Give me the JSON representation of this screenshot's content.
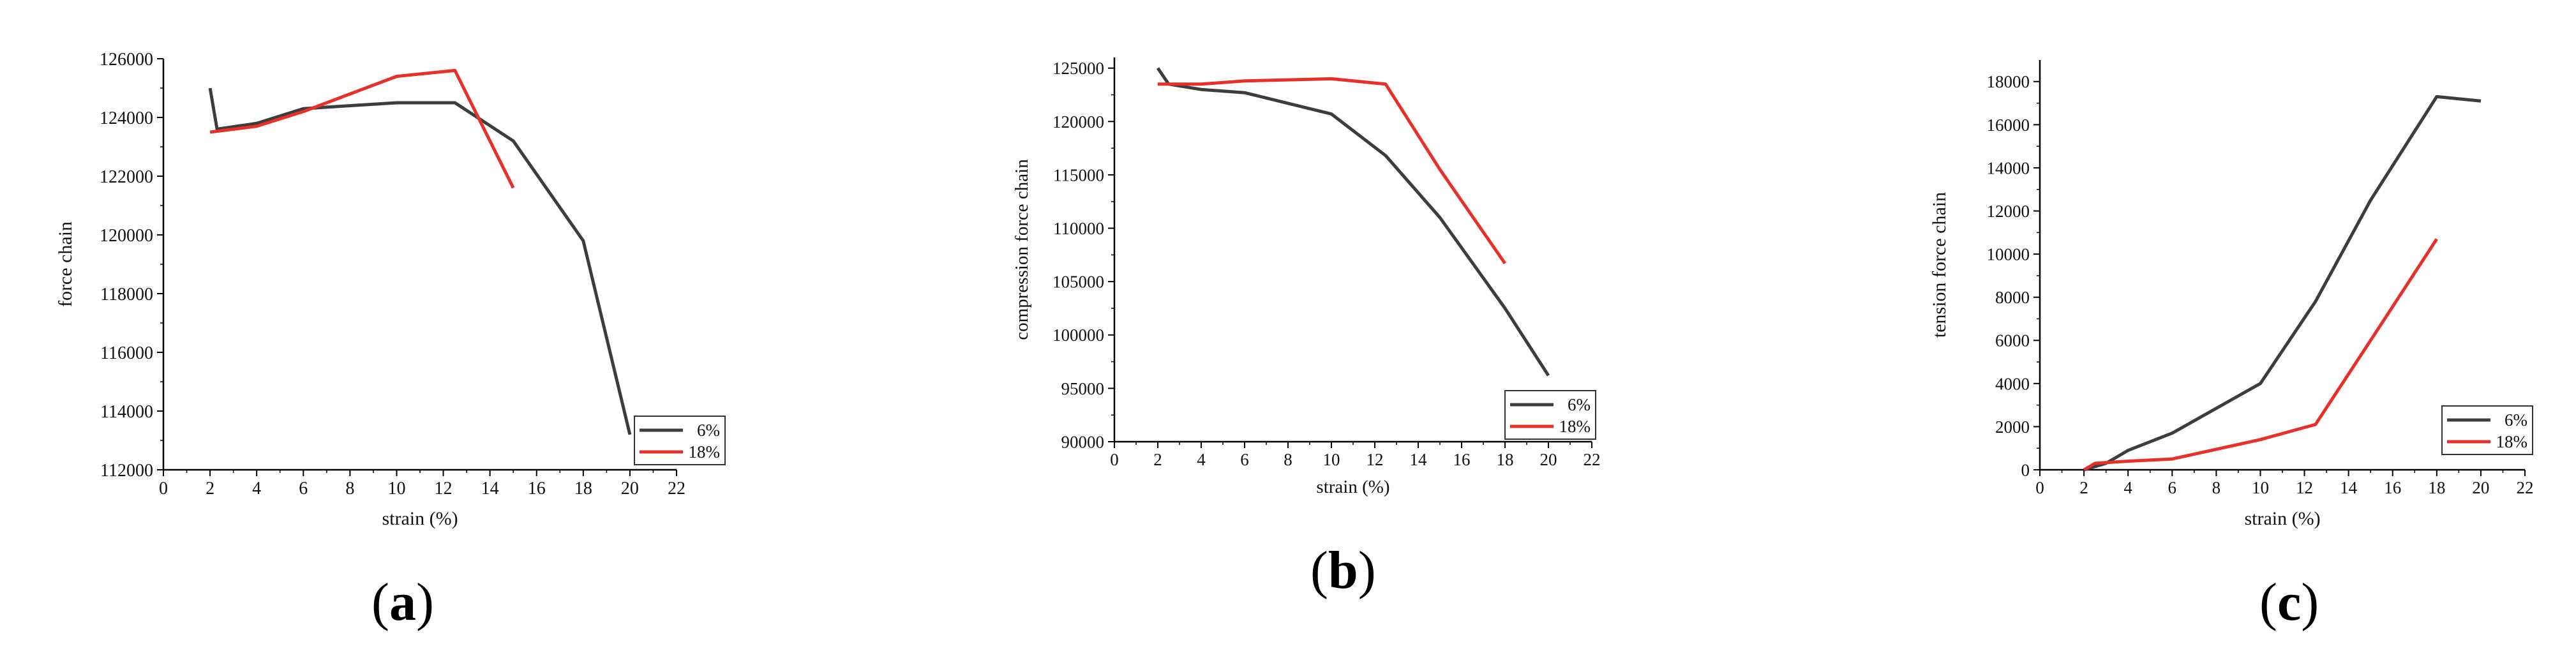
{
  "colors": {
    "series_6": "#3d3d3d",
    "series_18": "#e8302a",
    "axis": "#000000"
  },
  "panel_labels": [
    {
      "open": "(",
      "letter": "a",
      "close": ")"
    },
    {
      "open": "(",
      "letter": "b",
      "close": ")"
    },
    {
      "open": "(",
      "letter": "c",
      "close": ")"
    }
  ],
  "chart_data": [
    {
      "type": "line",
      "xlabel": "strain (%)",
      "ylabel": "force chain",
      "xlim": [
        0,
        22
      ],
      "ylim": [
        112000,
        126000
      ],
      "xticks": [
        0,
        2,
        4,
        6,
        8,
        10,
        12,
        14,
        16,
        18,
        20,
        22
      ],
      "yticks": [
        112000,
        114000,
        116000,
        118000,
        120000,
        122000,
        124000,
        126000
      ],
      "legend_position": "bottom-right",
      "series": [
        {
          "name": "6%",
          "color": "#3d3d3d",
          "x": [
            2,
            2.3,
            4,
            6,
            10,
            12.5,
            15,
            18,
            20
          ],
          "y": [
            125000,
            123600,
            123800,
            124300,
            124500,
            124500,
            123200,
            119800,
            113200
          ]
        },
        {
          "name": "18%",
          "color": "#e8302a",
          "x": [
            2,
            4,
            6,
            10,
            12.5,
            15
          ],
          "y": [
            123500,
            123700,
            124200,
            125400,
            125600,
            121600
          ]
        }
      ]
    },
    {
      "type": "line",
      "xlabel": "strain (%)",
      "ylabel": "compression force chain",
      "xlim": [
        0,
        22
      ],
      "ylim": [
        90000,
        126000
      ],
      "xticks": [
        0,
        2,
        4,
        6,
        8,
        10,
        12,
        14,
        16,
        18,
        20,
        22
      ],
      "yticks": [
        90000,
        95000,
        100000,
        105000,
        110000,
        115000,
        120000,
        125000
      ],
      "legend_position": "bottom-right",
      "series": [
        {
          "name": "6%",
          "color": "#3d3d3d",
          "x": [
            2,
            2.5,
            4,
            6,
            10,
            12.5,
            15,
            18,
            20
          ],
          "y": [
            125000,
            123500,
            123000,
            122700,
            120700,
            116800,
            111000,
            102500,
            96200
          ]
        },
        {
          "name": "18%",
          "color": "#e8302a",
          "x": [
            2,
            4,
            6,
            10,
            12.5,
            15,
            18
          ],
          "y": [
            123500,
            123500,
            123800,
            124000,
            123500,
            115500,
            106700
          ]
        }
      ]
    },
    {
      "type": "line",
      "xlabel": "strain (%)",
      "ylabel": "tension force chain",
      "xlim": [
        0,
        22
      ],
      "ylim": [
        0,
        19000
      ],
      "xticks": [
        0,
        2,
        4,
        6,
        8,
        10,
        12,
        14,
        16,
        18,
        20,
        22
      ],
      "yticks": [
        0,
        2000,
        4000,
        6000,
        8000,
        10000,
        12000,
        14000,
        16000,
        18000
      ],
      "legend_position": "bottom-right",
      "series": [
        {
          "name": "6%",
          "color": "#3d3d3d",
          "x": [
            2,
            3,
            4,
            6,
            10,
            12.5,
            15,
            18,
            20
          ],
          "y": [
            0,
            300,
            900,
            1700,
            4000,
            7800,
            12500,
            17300,
            17100
          ]
        },
        {
          "name": "18%",
          "color": "#e8302a",
          "x": [
            2,
            2.5,
            4,
            6,
            10,
            12.5,
            15,
            18
          ],
          "y": [
            0,
            300,
            400,
            500,
            1400,
            2100,
            6000,
            10700
          ]
        }
      ]
    }
  ]
}
